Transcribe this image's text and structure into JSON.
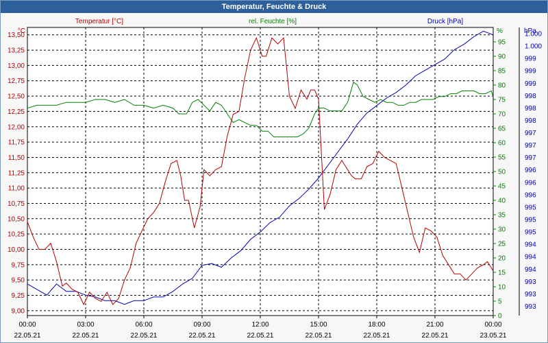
{
  "window": {
    "title": "Temperatur, Feuchte & Druck"
  },
  "colors": {
    "temperature": "#b40000",
    "humidity": "#008000",
    "pressure": "#0000b4",
    "grid": "#000000"
  },
  "chart_data": {
    "type": "line",
    "title": "Temperatur, Feuchte & Druck",
    "x_ticks": [
      {
        "time": "00:00",
        "date": "22.05.21"
      },
      {
        "time": "03:00",
        "date": "22.05.21"
      },
      {
        "time": "06:00",
        "date": "22.05.21"
      },
      {
        "time": "09:00",
        "date": "22.05.21"
      },
      {
        "time": "12:00",
        "date": "22.05.21"
      },
      {
        "time": "15:00",
        "date": "22.05.21"
      },
      {
        "time": "18:00",
        "date": "22.05.21"
      },
      {
        "time": "21:00",
        "date": "22.05.21"
      },
      {
        "time": "00:00",
        "date": "23.05.21"
      }
    ],
    "xlim_hours": [
      0,
      24
    ],
    "temperature": {
      "name": "Temperatur [°C]",
      "unit": "°C",
      "ylim": [
        8.92,
        13.62
      ],
      "ticks": [
        "9,00",
        "9,25",
        "9,50",
        "9,75",
        "10,00",
        "10,25",
        "10,50",
        "10,75",
        "11,00",
        "11,25",
        "11,50",
        "11,75",
        "12,00",
        "12,25",
        "12,50",
        "12,75",
        "13,00",
        "13,25",
        "13,50"
      ],
      "x": [
        0,
        0.3,
        0.6,
        0.9,
        1.2,
        1.5,
        1.8,
        2.0,
        2.3,
        2.6,
        2.9,
        3.2,
        3.5,
        3.8,
        4.1,
        4.4,
        4.7,
        5.0,
        5.3,
        5.6,
        5.9,
        6.2,
        6.5,
        6.8,
        7.1,
        7.4,
        7.7,
        7.9,
        8.1,
        8.3,
        8.6,
        8.9,
        9.1,
        9.4,
        9.7,
        10.0,
        10.3,
        10.6,
        10.9,
        11.2,
        11.5,
        11.8,
        12.1,
        12.3,
        12.6,
        12.9,
        13.2,
        13.5,
        13.8,
        14.1,
        14.4,
        14.6,
        14.8,
        15.0,
        15.3,
        15.6,
        15.9,
        16.2,
        16.5,
        16.7,
        16.9,
        17.2,
        17.5,
        17.8,
        18.1,
        18.4,
        18.7,
        19.0,
        19.3,
        19.6,
        19.9,
        20.2,
        20.5,
        20.8,
        21.1,
        21.4,
        21.7,
        22.0,
        22.3,
        22.6,
        22.9,
        23.2,
        23.5,
        23.7,
        23.9,
        24.0
      ],
      "values": [
        10.45,
        10.2,
        10.0,
        10.0,
        10.1,
        9.8,
        9.4,
        9.45,
        9.35,
        9.3,
        9.1,
        9.3,
        9.2,
        9.15,
        9.3,
        9.1,
        9.2,
        9.5,
        9.7,
        10.1,
        10.3,
        10.5,
        10.6,
        10.75,
        11.1,
        11.4,
        11.45,
        11.2,
        10.8,
        10.8,
        10.35,
        10.7,
        11.3,
        11.2,
        11.3,
        11.35,
        11.85,
        12.2,
        12.25,
        12.8,
        13.25,
        13.45,
        13.15,
        13.15,
        13.45,
        13.35,
        13.45,
        12.5,
        12.3,
        12.6,
        12.45,
        12.6,
        12.6,
        12.45,
        10.65,
        10.9,
        11.3,
        11.45,
        11.3,
        11.2,
        11.15,
        11.15,
        11.35,
        11.4,
        11.6,
        11.5,
        11.45,
        11.4,
        11.0,
        10.6,
        10.2,
        9.95,
        10.35,
        10.3,
        10.2,
        9.9,
        9.75,
        9.6,
        9.6,
        9.5,
        9.6,
        9.7,
        9.75,
        9.8,
        9.7,
        9.65
      ]
    },
    "humidity": {
      "name": "rel. Feuchte [%]",
      "unit": "%",
      "ylim": [
        0,
        100
      ],
      "ticks": [
        "0",
        "5",
        "10",
        "15",
        "20",
        "25",
        "30",
        "35",
        "40",
        "45",
        "50",
        "55",
        "60",
        "65",
        "70",
        "75",
        "80",
        "85",
        "90",
        "95"
      ],
      "x": [
        0,
        0.5,
        1,
        1.5,
        2,
        2.5,
        3,
        3.5,
        4,
        4.5,
        5,
        5.5,
        6,
        6.5,
        7,
        7.5,
        7.8,
        8.2,
        8.5,
        8.8,
        9.1,
        9.4,
        9.7,
        10,
        10.3,
        10.6,
        10.9,
        11.2,
        11.5,
        11.8,
        12.1,
        12.4,
        12.7,
        13,
        13.3,
        13.6,
        13.9,
        14.2,
        14.5,
        14.8,
        15,
        15.3,
        15.6,
        15.9,
        16.2,
        16.5,
        16.8,
        17,
        17.3,
        17.6,
        17.9,
        18.2,
        18.5,
        18.8,
        19.1,
        19.4,
        19.7,
        20,
        20.3,
        20.6,
        20.9,
        21.2,
        21.5,
        21.8,
        22.1,
        22.4,
        22.7,
        23,
        23.3,
        23.6,
        23.9,
        24
      ],
      "values": [
        72,
        73,
        73,
        73,
        74,
        74,
        74,
        75,
        75,
        74,
        75,
        73,
        73,
        72,
        73,
        72,
        70,
        70,
        74,
        75,
        73,
        71,
        74,
        73,
        70,
        67,
        68,
        67,
        66,
        66,
        64,
        64,
        62,
        62,
        62,
        62,
        62,
        63,
        65,
        70,
        72,
        72,
        71,
        71,
        71,
        74,
        81,
        80,
        76,
        75,
        74,
        75,
        74,
        74,
        73,
        73,
        74,
        74,
        75,
        75,
        75,
        76,
        76,
        77,
        77,
        78,
        78,
        78,
        77,
        77,
        78,
        76
      ]
    },
    "pressure": {
      "name": "Druck [hPa]",
      "unit": "hPa",
      "ylim": [
        992.45,
        1000.2
      ],
      "ticks": [
        "993",
        "993",
        "993",
        "994",
        "994",
        "994",
        "995",
        "995",
        "995",
        "996",
        "996",
        "996",
        "997",
        "997",
        "997",
        "998",
        "998",
        "998",
        "999",
        "999",
        "999",
        "1.000",
        "1.000"
      ],
      "x": [
        0,
        0.5,
        1,
        1.5,
        2,
        2.5,
        3,
        3.5,
        4,
        4.5,
        5,
        5.5,
        6,
        6.5,
        7,
        7.5,
        8,
        8.5,
        9,
        9.5,
        10,
        10.5,
        11,
        11.5,
        12,
        12.5,
        13,
        13.5,
        14,
        14.5,
        15,
        15.5,
        16,
        16.5,
        17,
        17.5,
        18,
        18.5,
        19,
        19.5,
        20,
        20.5,
        21,
        21.5,
        22,
        22.5,
        23,
        23.5,
        24
      ],
      "values": [
        993.3,
        993.15,
        993.0,
        993.3,
        993.1,
        993.1,
        993.0,
        992.95,
        992.85,
        992.85,
        992.75,
        992.85,
        992.85,
        992.95,
        992.95,
        993.1,
        993.3,
        993.45,
        993.8,
        993.85,
        993.75,
        994.0,
        994.2,
        994.5,
        994.7,
        994.95,
        995.1,
        995.4,
        995.6,
        995.85,
        996.15,
        996.5,
        996.85,
        997.2,
        997.6,
        997.9,
        998.1,
        998.3,
        998.45,
        998.65,
        998.9,
        999.05,
        999.2,
        999.35,
        999.6,
        999.75,
        999.95,
        1000.1,
        1000.0
      ]
    }
  }
}
